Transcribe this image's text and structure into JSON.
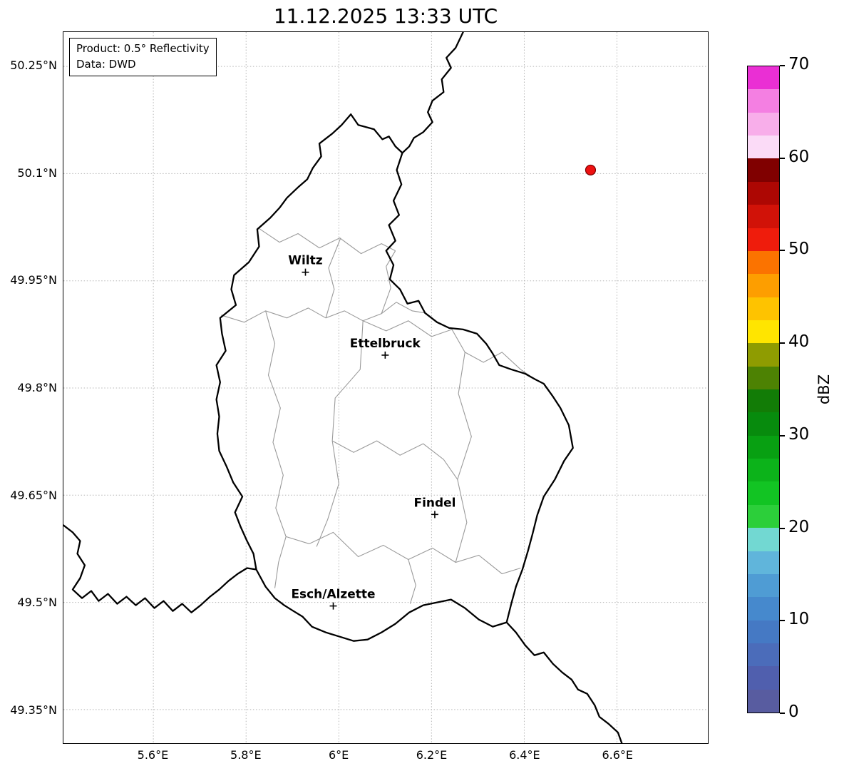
{
  "title": "11.12.2025 13:33 UTC",
  "info_box": {
    "line1": "Product: 0.5° Reflectivity",
    "line2": "Data: DWD"
  },
  "axes": {
    "extent": {
      "lon_min": 5.406,
      "lon_max": 6.796,
      "lat_min": 49.303,
      "lat_max": 50.298
    },
    "x_ticks": [
      {
        "label": "5.6°E",
        "lon": 5.6
      },
      {
        "label": "5.8°E",
        "lon": 5.8
      },
      {
        "label": "6°E",
        "lon": 6.0
      },
      {
        "label": "6.2°E",
        "lon": 6.2
      },
      {
        "label": "6.4°E",
        "lon": 6.4
      },
      {
        "label": "6.6°E",
        "lon": 6.6
      }
    ],
    "y_ticks": [
      {
        "label": "50.25°N",
        "lat": 50.25
      },
      {
        "label": "50.1°N",
        "lat": 50.1
      },
      {
        "label": "49.95°N",
        "lat": 49.95
      },
      {
        "label": "49.8°N",
        "lat": 49.8
      },
      {
        "label": "49.65°N",
        "lat": 49.65
      },
      {
        "label": "49.5°N",
        "lat": 49.5
      },
      {
        "label": "49.35°N",
        "lat": 49.35
      }
    ]
  },
  "cities": [
    {
      "name": "Wiltz",
      "lon": 5.928,
      "lat": 49.962
    },
    {
      "name": "Ettelbruck",
      "lon": 6.1,
      "lat": 49.846
    },
    {
      "name": "Findel",
      "lon": 6.207,
      "lat": 49.623
    },
    {
      "name": "Esch/Alzette",
      "lon": 5.988,
      "lat": 49.495
    }
  ],
  "observation": {
    "lon": 6.543,
    "lat": 50.105,
    "color": "#ee1111",
    "edge_color": "#7a0000",
    "radius": 7
  },
  "colorbar": {
    "label": "dBZ",
    "min": 0,
    "max": 70,
    "tick_values": [
      0,
      10,
      20,
      30,
      40,
      50,
      60,
      70
    ],
    "colors": [
      "#585ca0",
      "#505fae",
      "#4b6cba",
      "#4579c4",
      "#4689cd",
      "#4f9cd4",
      "#60b5db",
      "#72d8d2",
      "#2ccf3a",
      "#12c423",
      "#0cb31a",
      "#08a012",
      "#078b0d",
      "#127c06",
      "#4d8203",
      "#8f9c01",
      "#ffe500",
      "#fec300",
      "#fd9e00",
      "#fb7300",
      "#ef1c0c",
      "#d11208",
      "#ad0703",
      "#800000",
      "#fbdbf7",
      "#f8aeea",
      "#f47fe2",
      "#ea2fd4"
    ]
  },
  "map": {
    "country_borders": [
      [
        [
          6.026,
          50.183
        ],
        [
          6.042,
          50.168
        ],
        [
          6.076,
          50.162
        ],
        [
          6.094,
          50.148
        ],
        [
          6.108,
          50.152
        ],
        [
          6.122,
          50.138
        ],
        [
          6.137,
          50.129
        ],
        [
          6.125,
          50.105
        ],
        [
          6.135,
          50.085
        ],
        [
          6.118,
          50.062
        ],
        [
          6.13,
          50.042
        ],
        [
          6.108,
          50.028
        ],
        [
          6.122,
          50.006
        ],
        [
          6.102,
          49.992
        ],
        [
          6.118,
          49.972
        ],
        [
          6.11,
          49.952
        ],
        [
          6.132,
          49.938
        ],
        [
          6.148,
          49.918
        ],
        [
          6.172,
          49.922
        ],
        [
          6.186,
          49.905
        ],
        [
          6.212,
          49.892
        ],
        [
          6.238,
          49.884
        ],
        [
          6.268,
          49.882
        ],
        [
          6.298,
          49.876
        ],
        [
          6.318,
          49.862
        ],
        [
          6.332,
          49.848
        ],
        [
          6.346,
          49.832
        ],
        [
          6.372,
          49.826
        ],
        [
          6.402,
          49.82
        ],
        [
          6.424,
          49.812
        ],
        [
          6.442,
          49.806
        ],
        [
          6.462,
          49.788
        ],
        [
          6.478,
          49.772
        ],
        [
          6.496,
          49.748
        ],
        [
          6.505,
          49.716
        ],
        [
          6.486,
          49.698
        ],
        [
          6.466,
          49.672
        ],
        [
          6.442,
          49.648
        ],
        [
          6.428,
          49.622
        ],
        [
          6.418,
          49.596
        ],
        [
          6.408,
          49.572
        ],
        [
          6.396,
          49.546
        ],
        [
          6.382,
          49.522
        ],
        [
          6.372,
          49.498
        ],
        [
          6.362,
          49.472
        ],
        [
          6.332,
          49.466
        ],
        [
          6.302,
          49.476
        ],
        [
          6.272,
          49.492
        ],
        [
          6.242,
          49.504
        ],
        [
          6.212,
          49.5
        ],
        [
          6.182,
          49.496
        ],
        [
          6.152,
          49.486
        ],
        [
          6.122,
          49.47
        ],
        [
          6.092,
          49.458
        ],
        [
          6.062,
          49.448
        ],
        [
          6.032,
          49.446
        ],
        [
          6.002,
          49.452
        ],
        [
          5.972,
          49.458
        ],
        [
          5.942,
          49.466
        ],
        [
          5.922,
          49.48
        ],
        [
          5.902,
          49.488
        ],
        [
          5.882,
          49.496
        ],
        [
          5.862,
          49.506
        ],
        [
          5.842,
          49.522
        ],
        [
          5.822,
          49.546
        ],
        [
          5.816,
          49.568
        ],
        [
          5.802,
          49.586
        ],
        [
          5.788,
          49.606
        ],
        [
          5.776,
          49.626
        ],
        [
          5.792,
          49.648
        ],
        [
          5.772,
          49.668
        ],
        [
          5.758,
          49.69
        ],
        [
          5.742,
          49.712
        ],
        [
          5.738,
          49.736
        ],
        [
          5.742,
          49.76
        ],
        [
          5.736,
          49.784
        ],
        [
          5.744,
          49.808
        ],
        [
          5.736,
          49.832
        ],
        [
          5.756,
          49.852
        ],
        [
          5.748,
          49.876
        ],
        [
          5.744,
          49.898
        ],
        [
          5.778,
          49.916
        ],
        [
          5.768,
          49.938
        ],
        [
          5.774,
          49.958
        ],
        [
          5.806,
          49.976
        ],
        [
          5.828,
          49.998
        ],
        [
          5.824,
          50.022
        ],
        [
          5.852,
          50.038
        ],
        [
          5.872,
          50.052
        ],
        [
          5.888,
          50.066
        ],
        [
          5.914,
          50.082
        ],
        [
          5.932,
          50.092
        ],
        [
          5.944,
          50.108
        ],
        [
          5.962,
          50.124
        ],
        [
          5.958,
          50.142
        ],
        [
          5.986,
          50.156
        ],
        [
          6.006,
          50.168
        ],
        [
          6.026,
          50.183
        ]
      ],
      [
        [
          6.268,
          50.298
        ],
        [
          6.252,
          50.276
        ],
        [
          6.232,
          50.262
        ],
        [
          6.242,
          50.248
        ],
        [
          6.222,
          50.232
        ],
        [
          6.226,
          50.214
        ],
        [
          6.202,
          50.202
        ],
        [
          6.192,
          50.186
        ],
        [
          6.202,
          50.172
        ],
        [
          6.182,
          50.158
        ],
        [
          6.162,
          50.15
        ],
        [
          6.152,
          50.138
        ],
        [
          6.137,
          50.129
        ]
      ],
      [
        [
          6.362,
          49.472
        ],
        [
          6.382,
          49.458
        ],
        [
          6.402,
          49.44
        ],
        [
          6.422,
          49.426
        ],
        [
          6.442,
          49.43
        ],
        [
          6.462,
          49.414
        ],
        [
          6.482,
          49.402
        ],
        [
          6.502,
          49.392
        ],
        [
          6.516,
          49.378
        ],
        [
          6.536,
          49.372
        ],
        [
          6.552,
          49.356
        ],
        [
          6.562,
          49.34
        ],
        [
          6.582,
          49.33
        ],
        [
          6.602,
          49.318
        ],
        [
          6.612,
          49.3
        ]
      ],
      [
        [
          5.406,
          49.608
        ],
        [
          5.426,
          49.598
        ],
        [
          5.442,
          49.586
        ],
        [
          5.436,
          49.568
        ],
        [
          5.452,
          49.552
        ],
        [
          5.442,
          49.534
        ],
        [
          5.426,
          49.518
        ],
        [
          5.446,
          49.506
        ],
        [
          5.466,
          49.516
        ],
        [
          5.482,
          49.502
        ],
        [
          5.502,
          49.512
        ],
        [
          5.522,
          49.498
        ],
        [
          5.542,
          49.508
        ],
        [
          5.562,
          49.496
        ],
        [
          5.582,
          49.506
        ],
        [
          5.602,
          49.492
        ],
        [
          5.622,
          49.502
        ],
        [
          5.642,
          49.488
        ],
        [
          5.662,
          49.498
        ],
        [
          5.682,
          49.486
        ],
        [
          5.702,
          49.496
        ],
        [
          5.722,
          49.508
        ],
        [
          5.742,
          49.518
        ],
        [
          5.762,
          49.53
        ],
        [
          5.782,
          49.54
        ],
        [
          5.802,
          49.548
        ],
        [
          5.822,
          49.546
        ]
      ]
    ],
    "canton_borders": [
      [
        [
          5.826,
          50.024
        ],
        [
          5.872,
          50.004
        ],
        [
          5.912,
          50.016
        ],
        [
          5.958,
          49.996
        ],
        [
          6.002,
          50.01
        ],
        [
          6.048,
          49.988
        ],
        [
          6.092,
          50.002
        ],
        [
          6.122,
          49.992
        ]
      ],
      [
        [
          5.746,
          49.902
        ],
        [
          5.796,
          49.892
        ],
        [
          5.842,
          49.908
        ],
        [
          5.888,
          49.898
        ],
        [
          5.934,
          49.912
        ],
        [
          5.972,
          49.898
        ],
        [
          6.012,
          49.908
        ],
        [
          6.052,
          49.894
        ]
      ],
      [
        [
          5.972,
          49.898
        ],
        [
          5.99,
          49.938
        ],
        [
          5.978,
          49.968
        ],
        [
          6.004,
          50.01
        ]
      ],
      [
        [
          6.052,
          49.894
        ],
        [
          6.092,
          49.904
        ],
        [
          6.124,
          49.92
        ],
        [
          6.158,
          49.908
        ],
        [
          6.186,
          49.905
        ]
      ],
      [
        [
          5.842,
          49.908
        ],
        [
          5.862,
          49.862
        ],
        [
          5.848,
          49.818
        ],
        [
          5.874,
          49.772
        ],
        [
          5.858,
          49.724
        ],
        [
          5.88,
          49.678
        ],
        [
          5.864,
          49.632
        ],
        [
          5.886,
          49.592
        ],
        [
          5.87,
          49.556
        ],
        [
          5.862,
          49.52
        ]
      ],
      [
        [
          6.052,
          49.894
        ],
        [
          6.046,
          49.826
        ],
        [
          5.992,
          49.786
        ],
        [
          5.986,
          49.726
        ],
        [
          6.0,
          49.666
        ],
        [
          5.976,
          49.616
        ],
        [
          5.952,
          49.578
        ]
      ],
      [
        [
          5.886,
          49.592
        ],
        [
          5.936,
          49.582
        ],
        [
          5.988,
          49.598
        ],
        [
          6.042,
          49.564
        ],
        [
          6.096,
          49.58
        ],
        [
          6.15,
          49.56
        ],
        [
          6.202,
          49.576
        ],
        [
          6.252,
          49.556
        ],
        [
          6.302,
          49.566
        ],
        [
          6.352,
          49.54
        ],
        [
          6.392,
          49.548
        ]
      ],
      [
        [
          6.272,
          49.85
        ],
        [
          6.258,
          49.792
        ],
        [
          6.286,
          49.732
        ],
        [
          6.256,
          49.672
        ],
        [
          6.276,
          49.612
        ],
        [
          6.252,
          49.556
        ]
      ],
      [
        [
          6.052,
          49.894
        ],
        [
          6.102,
          49.88
        ],
        [
          6.15,
          49.894
        ],
        [
          6.2,
          49.872
        ],
        [
          6.244,
          49.882
        ],
        [
          6.272,
          49.85
        ]
      ],
      [
        [
          6.272,
          49.85
        ],
        [
          6.312,
          49.836
        ],
        [
          6.352,
          49.85
        ],
        [
          6.392,
          49.826
        ],
        [
          6.424,
          49.812
        ]
      ],
      [
        [
          5.986,
          49.726
        ],
        [
          6.032,
          49.71
        ],
        [
          6.082,
          49.726
        ],
        [
          6.132,
          49.706
        ],
        [
          6.182,
          49.722
        ],
        [
          6.226,
          49.7
        ],
        [
          6.256,
          49.672
        ]
      ],
      [
        [
          6.15,
          49.56
        ],
        [
          6.166,
          49.524
        ],
        [
          6.154,
          49.498
        ]
      ],
      [
        [
          6.092,
          49.904
        ],
        [
          6.112,
          49.94
        ],
        [
          6.102,
          49.97
        ],
        [
          6.122,
          49.992
        ]
      ]
    ]
  }
}
